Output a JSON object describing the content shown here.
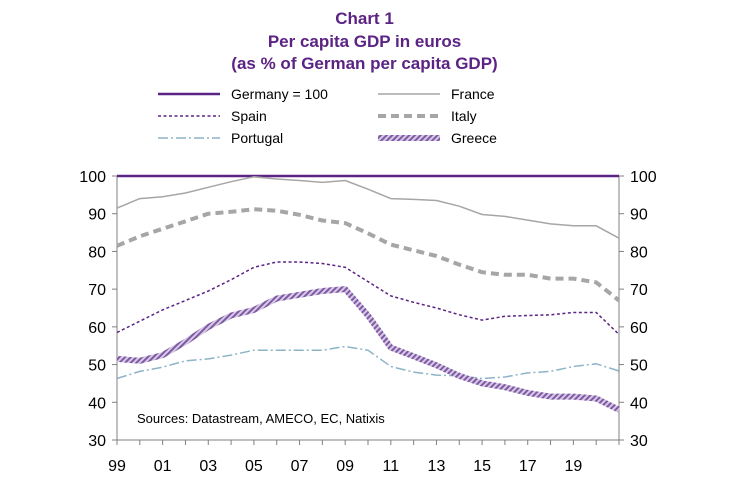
{
  "chart_data": {
    "type": "line",
    "title": "Chart 1",
    "subtitle_line1": "Per capita GDP in euros",
    "subtitle_line2": "(as % of German per capita GDP)",
    "note": "Sources:  Datastream,  AMECO, EC, Natixis",
    "x": [
      1999,
      2000,
      2001,
      2002,
      2003,
      2004,
      2005,
      2006,
      2007,
      2008,
      2009,
      2010,
      2011,
      2012,
      2013,
      2014,
      2015,
      2016,
      2017,
      2018,
      2019,
      2020,
      2021
    ],
    "x_tick_labels": [
      "99",
      "01",
      "03",
      "05",
      "07",
      "09",
      "11",
      "13",
      "15",
      "17",
      "19"
    ],
    "x_tick_years": [
      1999,
      2001,
      2003,
      2005,
      2007,
      2009,
      2011,
      2013,
      2015,
      2017,
      2019
    ],
    "ylim": [
      30,
      100
    ],
    "y_ticks": [
      30,
      40,
      50,
      60,
      70,
      80,
      90,
      100
    ],
    "y_tick_labels": [
      "30",
      "40",
      "50",
      "60",
      "70",
      "80",
      "90",
      "100"
    ],
    "grid": false,
    "legend_position": "top",
    "series": [
      {
        "name": "Germany = 100",
        "key": "germany",
        "color": "#5b2383",
        "values": [
          100,
          100,
          100,
          100,
          100,
          100,
          100,
          100,
          100,
          100,
          100,
          100,
          100,
          100,
          100,
          100,
          100,
          100,
          100,
          100,
          100,
          100,
          100
        ]
      },
      {
        "name": "France",
        "key": "france",
        "color": "#a6a6a6",
        "values": [
          91.5,
          94,
          94.5,
          95.5,
          97,
          98.5,
          99.8,
          99.2,
          98.8,
          98.3,
          98.8,
          96.5,
          94,
          93.8,
          93.5,
          92,
          89.8,
          89.3,
          88.3,
          87.3,
          86.8,
          86.8,
          83.5
        ]
      },
      {
        "name": "Spain",
        "key": "spain",
        "color": "#5b2383",
        "values": [
          58.5,
          61.5,
          64.5,
          67,
          69.5,
          72.5,
          75.8,
          77.2,
          77.2,
          76.8,
          75.8,
          72,
          68.2,
          66.5,
          65,
          63.2,
          61.8,
          62.8,
          63,
          63.2,
          63.8,
          63.8,
          58
        ]
      },
      {
        "name": "Italy",
        "key": "italy",
        "color": "#a6a6a6",
        "values": [
          81.5,
          84,
          86,
          88,
          90,
          90.5,
          91.2,
          90.8,
          89.7,
          88.2,
          87.5,
          84.8,
          81.8,
          80.3,
          78.8,
          76.5,
          74.5,
          73.8,
          73.8,
          72.8,
          72.8,
          71.8,
          67
        ]
      },
      {
        "name": "Portugal",
        "key": "portugal",
        "color": "#8db3c7",
        "values": [
          46.3,
          48.2,
          49.3,
          51,
          51.5,
          52.5,
          53.8,
          53.8,
          53.8,
          53.8,
          54.8,
          53.8,
          49.5,
          48,
          47.2,
          47,
          46.3,
          46.7,
          47.8,
          48.2,
          49.5,
          50.2,
          48.3
        ]
      },
      {
        "name": "Greece",
        "key": "greece",
        "color": "#a88dc0",
        "values": [
          51.5,
          51,
          52.5,
          56,
          60,
          63,
          64.5,
          67.5,
          68.5,
          69.5,
          70,
          63,
          54.5,
          52.2,
          49.8,
          47,
          45,
          44,
          42.5,
          41.5,
          41.5,
          41,
          38
        ]
      }
    ]
  }
}
